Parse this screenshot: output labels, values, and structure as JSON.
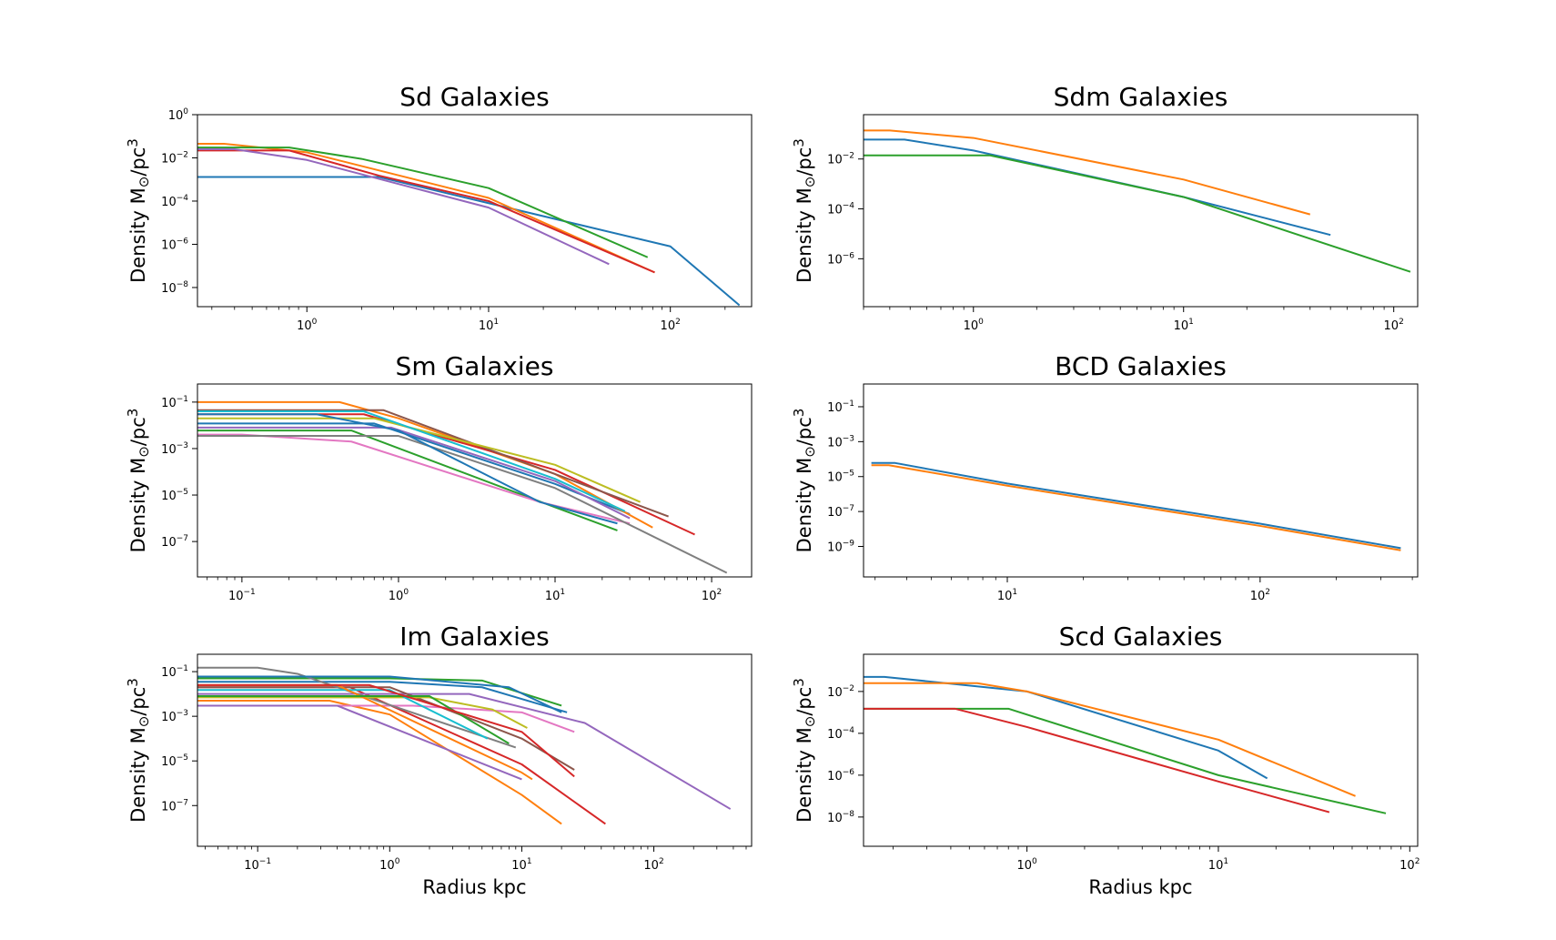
{
  "colors": [
    "#1f77b4",
    "#ff7f0e",
    "#2ca02c",
    "#d62728",
    "#9467bd",
    "#8c564b",
    "#e377c2",
    "#7f7f7f",
    "#bcbd22",
    "#17becf"
  ],
  "chart_data": [
    {
      "type": "line",
      "title": "Sd Galaxies",
      "xlabel": "",
      "ylabel": "Density M$_\\odot$/pc$^3$",
      "xscale": "log",
      "yscale": "log",
      "xlim": [
        0.25,
        280
      ],
      "ylim": [
        1.3e-09,
        1
      ],
      "xticks": [
        1,
        10,
        100
      ],
      "yticks": [
        1e-08,
        1e-06,
        0.0001,
        0.01,
        1
      ],
      "series": [
        {
          "x": [
            0.25,
            2.5,
            10,
            100,
            240
          ],
          "y": [
            0.0013,
            0.0013,
            8e-05,
            8e-07,
            1.5e-09
          ]
        },
        {
          "x": [
            0.25,
            0.35,
            1.0,
            10,
            82
          ],
          "y": [
            0.045,
            0.045,
            0.018,
            0.00014,
            5e-08
          ]
        },
        {
          "x": [
            0.25,
            0.8,
            2.0,
            10,
            75
          ],
          "y": [
            0.03,
            0.03,
            0.009,
            0.0004,
            2.5e-07
          ]
        },
        {
          "x": [
            0.25,
            0.8,
            2.5,
            10,
            82
          ],
          "y": [
            0.022,
            0.022,
            0.0015,
            0.0001,
            5e-08
          ]
        },
        {
          "x": [
            0.25,
            0.4,
            1.0,
            10,
            46
          ],
          "y": [
            0.025,
            0.025,
            0.008,
            5e-05,
            1.2e-07
          ]
        }
      ]
    },
    {
      "type": "line",
      "title": "Sdm Galaxies",
      "xlabel": "",
      "ylabel": "Density M$_\\odot$/pc$^3$",
      "xscale": "log",
      "yscale": "log",
      "xlim": [
        0.3,
        130
      ],
      "ylim": [
        1.2e-08,
        0.6
      ],
      "xticks": [
        1,
        10,
        100
      ],
      "yticks": [
        1e-06,
        0.0001,
        0.01
      ],
      "series": [
        {
          "x": [
            0.3,
            0.47,
            1.0,
            10,
            50
          ],
          "y": [
            0.06,
            0.06,
            0.022,
            0.0003,
            9e-06
          ]
        },
        {
          "x": [
            0.3,
            0.4,
            1.0,
            10,
            40
          ],
          "y": [
            0.14,
            0.14,
            0.07,
            0.0015,
            6e-05
          ]
        },
        {
          "x": [
            0.3,
            1.2,
            10,
            120
          ],
          "y": [
            0.014,
            0.014,
            0.0003,
            3e-07
          ]
        }
      ]
    },
    {
      "type": "line",
      "title": "Sm Galaxies",
      "xlabel": "",
      "ylabel": "Density M$_\\odot$/pc$^3$",
      "xscale": "log",
      "yscale": "log",
      "xlim": [
        0.052,
        180
      ],
      "ylim": [
        3e-09,
        0.6
      ],
      "xticks": [
        0.1,
        1,
        10,
        100
      ],
      "yticks": [
        1e-07,
        1e-05,
        0.001,
        0.1
      ],
      "series": [
        {
          "x": [
            0.052,
            0.7,
            10,
            30
          ],
          "y": [
            0.012,
            0.012,
            3e-05,
            1.5e-06
          ]
        },
        {
          "x": [
            0.052,
            0.42,
            1.0,
            10,
            42
          ],
          "y": [
            0.1,
            0.1,
            0.02,
            8e-05,
            4e-07
          ]
        },
        {
          "x": [
            0.052,
            0.5,
            10,
            25
          ],
          "y": [
            0.006,
            0.006,
            3e-06,
            3e-07
          ]
        },
        {
          "x": [
            0.052,
            0.6,
            10,
            78
          ],
          "y": [
            0.03,
            0.03,
            0.00012,
            2e-07
          ]
        },
        {
          "x": [
            0.052,
            0.9,
            10,
            30
          ],
          "y": [
            0.008,
            0.008,
            4e-05,
            1e-06
          ]
        },
        {
          "x": [
            0.052,
            0.8,
            10,
            53
          ],
          "y": [
            0.045,
            0.045,
            8e-05,
            1.2e-06
          ]
        },
        {
          "x": [
            0.052,
            0.1,
            0.5,
            8,
            30
          ],
          "y": [
            0.004,
            0.004,
            0.002,
            5e-06,
            6e-07
          ]
        },
        {
          "x": [
            0.052,
            1.0,
            10,
            125
          ],
          "y": [
            0.0035,
            0.0035,
            2e-05,
            4.5e-09
          ]
        },
        {
          "x": [
            0.052,
            0.7,
            10,
            35
          ],
          "y": [
            0.02,
            0.02,
            0.0002,
            5e-06
          ]
        },
        {
          "x": [
            0.052,
            0.6,
            10,
            28
          ],
          "y": [
            0.04,
            0.04,
            5e-05,
            2e-06
          ]
        },
        {
          "x": [
            0.052,
            0.3,
            1.0,
            8,
            25
          ],
          "y": [
            0.03,
            0.03,
            0.006,
            5e-06,
            6e-07
          ]
        }
      ]
    },
    {
      "type": "line",
      "title": "BCD Galaxies",
      "xlabel": "",
      "ylabel": "Density M$_\\odot$/pc$^3$",
      "xscale": "log",
      "yscale": "log",
      "xlim": [
        2.7,
        420
      ],
      "ylim": [
        1.8e-11,
        2
      ],
      "xticks": [
        10,
        100
      ],
      "yticks": [
        1e-09,
        1e-07,
        1e-05,
        0.001,
        0.1
      ],
      "series": [
        {
          "x": [
            2.9,
            3.6,
            10,
            100,
            360
          ],
          "y": [
            6e-05,
            6e-05,
            4e-06,
            2e-08,
            8e-10
          ]
        },
        {
          "x": [
            2.9,
            3.4,
            10,
            100,
            360
          ],
          "y": [
            4.5e-05,
            4.5e-05,
            3e-06,
            1.5e-08,
            6e-10
          ]
        }
      ]
    },
    {
      "type": "line",
      "title": "Im Galaxies",
      "xlabel": "Radius kpc",
      "ylabel": "Density M$_\\odot$/pc$^3$",
      "xscale": "log",
      "yscale": "log",
      "xlim": [
        0.035,
        550
      ],
      "ylim": [
        1.5e-09,
        0.6
      ],
      "xticks": [
        0.1,
        1,
        10,
        100
      ],
      "yticks": [
        1e-07,
        1e-05,
        0.001,
        0.1
      ],
      "series": [
        {
          "x": [
            0.035,
            1.0,
            5,
            22
          ],
          "y": [
            0.035,
            0.035,
            0.02,
            0.0015
          ]
        },
        {
          "x": [
            0.035,
            0.35,
            1.0,
            10,
            20
          ],
          "y": [
            0.005,
            0.005,
            0.0012,
            3e-07,
            1.5e-08
          ]
        },
        {
          "x": [
            0.035,
            1.0,
            5,
            20
          ],
          "y": [
            0.05,
            0.05,
            0.04,
            0.003
          ]
        },
        {
          "x": [
            0.035,
            0.5,
            10,
            43
          ],
          "y": [
            0.02,
            0.02,
            7e-06,
            1.5e-08
          ]
        },
        {
          "x": [
            0.035,
            4.0,
            30,
            380
          ],
          "y": [
            0.01,
            0.01,
            0.0005,
            7e-08
          ]
        },
        {
          "x": [
            0.035,
            1.0,
            10,
            25
          ],
          "y": [
            0.02,
            0.02,
            0.0001,
            4e-06
          ]
        },
        {
          "x": [
            0.035,
            1.5,
            10,
            25
          ],
          "y": [
            0.003,
            0.003,
            0.0015,
            0.0002
          ]
        },
        {
          "x": [
            0.035,
            0.1,
            0.2,
            9
          ],
          "y": [
            0.15,
            0.15,
            0.08,
            4e-05
          ]
        },
        {
          "x": [
            0.035,
            2.0,
            6,
            11
          ],
          "y": [
            0.007,
            0.007,
            0.002,
            0.0003
          ]
        },
        {
          "x": [
            0.035,
            1.0,
            5.5
          ],
          "y": [
            0.015,
            0.015,
            0.0001
          ]
        },
        {
          "x": [
            0.035,
            1.0,
            8,
            20
          ],
          "y": [
            0.06,
            0.06,
            0.02,
            0.0015
          ]
        },
        {
          "x": [
            0.035,
            0.4,
            10,
            12
          ],
          "y": [
            0.025,
            0.025,
            3e-06,
            1.5e-06
          ]
        },
        {
          "x": [
            0.035,
            2.0,
            8
          ],
          "y": [
            0.008,
            0.008,
            6e-05
          ]
        },
        {
          "x": [
            0.035,
            0.7,
            10,
            25
          ],
          "y": [
            0.025,
            0.025,
            0.0002,
            2e-06
          ]
        },
        {
          "x": [
            0.035,
            0.4,
            10
          ],
          "y": [
            0.003,
            0.003,
            1.5e-06
          ]
        }
      ]
    },
    {
      "type": "line",
      "title": "Scd Galaxies",
      "xlabel": "Radius kpc",
      "ylabel": "Density M$_\\odot$/pc$^3$",
      "xscale": "log",
      "yscale": "log",
      "xlim": [
        0.14,
        110
      ],
      "ylim": [
        4e-10,
        0.6
      ],
      "xticks": [
        1,
        10,
        100
      ],
      "yticks": [
        1e-08,
        1e-06,
        0.0001,
        0.01
      ],
      "series": [
        {
          "x": [
            0.14,
            0.18,
            1.0,
            10,
            18
          ],
          "y": [
            0.05,
            0.05,
            0.01,
            1.5e-05,
            7e-07
          ]
        },
        {
          "x": [
            0.14,
            0.55,
            1.0,
            10,
            52
          ],
          "y": [
            0.025,
            0.025,
            0.01,
            5e-05,
            1e-07
          ]
        },
        {
          "x": [
            0.14,
            0.4,
            0.8,
            10,
            75
          ],
          "y": [
            0.0015,
            0.0015,
            0.0015,
            1e-06,
            1.5e-08
          ]
        },
        {
          "x": [
            0.14,
            0.42,
            1.0,
            10,
            38
          ],
          "y": [
            0.0015,
            0.0015,
            0.0002,
            5e-07,
            1.7e-08
          ]
        }
      ]
    }
  ]
}
